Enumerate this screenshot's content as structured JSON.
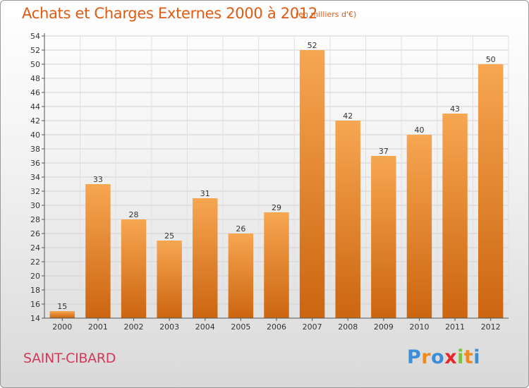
{
  "title": "Achats et Charges Externes 2000 à 2012",
  "subtitle": "(en milliers d'€)",
  "commune": "SAINT-CIBARD",
  "logo": {
    "letters": [
      "P",
      "r",
      "o",
      "x",
      "i",
      "t",
      "i"
    ],
    "colors": [
      "#3a8fd8",
      "#f08a1c",
      "#3a8fd8",
      "#e6262a",
      "#7cc242",
      "#f08a1c",
      "#3a8fd8"
    ]
  },
  "colors": {
    "bar_top": "#f7a652",
    "bar_bottom": "#cc6510",
    "title": "#e05a12",
    "commune": "#d23a5a"
  },
  "chart_data": {
    "type": "bar",
    "title": "Achats et Charges Externes 2000 à 2012",
    "subtitle": "(en milliers d'€)",
    "xlabel": "",
    "ylabel": "",
    "categories": [
      "2000",
      "2001",
      "2002",
      "2003",
      "2004",
      "2005",
      "2006",
      "2007",
      "2008",
      "2009",
      "2010",
      "2011",
      "2012"
    ],
    "values": [
      15,
      33,
      28,
      25,
      31,
      26,
      29,
      52,
      42,
      37,
      40,
      43,
      50
    ],
    "ylim": [
      14,
      54
    ],
    "yticks": [
      14,
      16,
      18,
      20,
      22,
      24,
      26,
      28,
      30,
      32,
      34,
      36,
      38,
      40,
      42,
      44,
      46,
      48,
      50,
      52,
      54
    ],
    "grid": true,
    "legend": "none"
  }
}
